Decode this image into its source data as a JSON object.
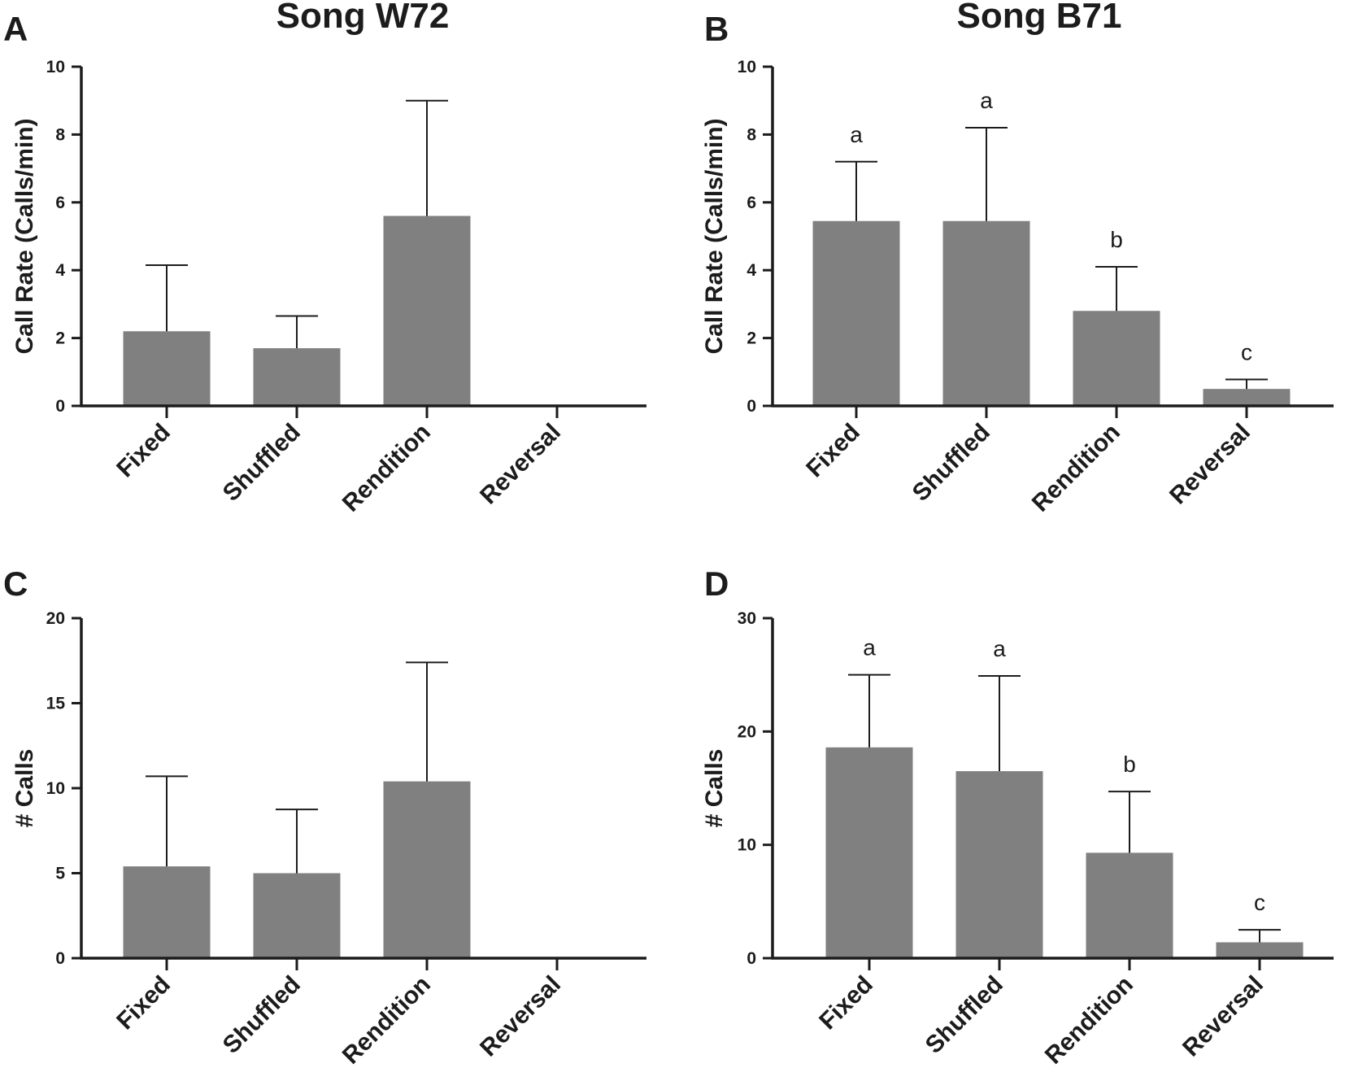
{
  "figure": {
    "column_titles": [
      "Song W72",
      "Song B71"
    ]
  },
  "colors": {
    "bar": "#7f807f",
    "axis": "#1c1c1c",
    "background": "#ffffff"
  },
  "chart_data": [
    {
      "panel": "A",
      "type": "bar",
      "title": "Song W72",
      "xlabel": "",
      "ylabel": "Call Rate (Calls/min)",
      "categories": [
        "Fixed",
        "Shuffled",
        "Rendition",
        "Reversal"
      ],
      "values": [
        2.2,
        1.7,
        5.6,
        0
      ],
      "error_upper": [
        4.15,
        2.65,
        9.0,
        null
      ],
      "significance": [],
      "ylim": [
        0,
        10
      ],
      "yticks": [
        0,
        2,
        4,
        6,
        8,
        10
      ]
    },
    {
      "panel": "B",
      "type": "bar",
      "title": "Song B71",
      "xlabel": "",
      "ylabel": "Call Rate (Calls/min)",
      "categories": [
        "Fixed",
        "Shuffled",
        "Rendition",
        "Reversal"
      ],
      "values": [
        5.45,
        5.45,
        2.8,
        0.5
      ],
      "error_upper": [
        7.2,
        8.2,
        4.1,
        0.78
      ],
      "significance": [
        "a",
        "a",
        "b",
        "c"
      ],
      "ylim": [
        0,
        10
      ],
      "yticks": [
        0,
        2,
        4,
        6,
        8,
        10
      ]
    },
    {
      "panel": "C",
      "type": "bar",
      "title": "",
      "xlabel": "",
      "ylabel": "# Calls",
      "categories": [
        "Fixed",
        "Shuffled",
        "Rendition",
        "Reversal"
      ],
      "values": [
        5.4,
        5.0,
        10.4,
        0
      ],
      "error_upper": [
        10.7,
        8.75,
        17.4,
        null
      ],
      "significance": [],
      "ylim": [
        0,
        20
      ],
      "yticks": [
        0,
        5,
        10,
        15,
        20
      ]
    },
    {
      "panel": "D",
      "type": "bar",
      "title": "",
      "xlabel": "",
      "ylabel": "# Calls",
      "categories": [
        "Fixed",
        "Shuffled",
        "Rendition",
        "Reversal"
      ],
      "values": [
        18.6,
        16.5,
        9.3,
        1.4
      ],
      "error_upper": [
        25.0,
        24.9,
        14.7,
        2.5
      ],
      "significance": [
        "a",
        "a",
        "b",
        "c"
      ],
      "ylim": [
        0,
        30
      ],
      "yticks": [
        0,
        10,
        20,
        30
      ]
    }
  ]
}
